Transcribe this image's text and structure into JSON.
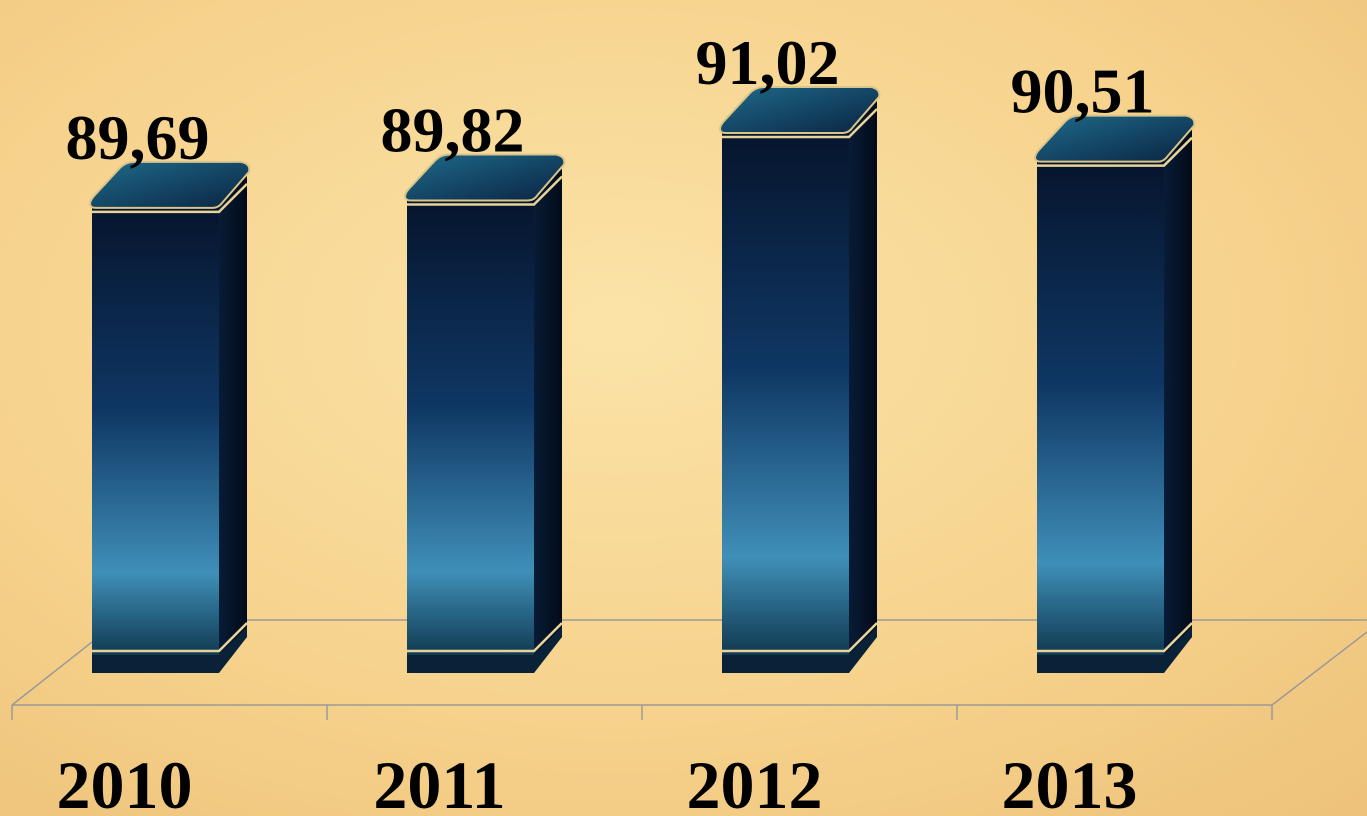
{
  "chart_data": {
    "type": "bar",
    "categories": [
      "2010",
      "2011",
      "2012",
      "2013"
    ],
    "values": [
      89.69,
      89.82,
      91.02,
      90.51
    ],
    "value_labels": [
      "89,69",
      "89,82",
      "91,02",
      "90,51"
    ],
    "color": "#0d2d52",
    "ylim": [
      81.5,
      92.6
    ]
  }
}
